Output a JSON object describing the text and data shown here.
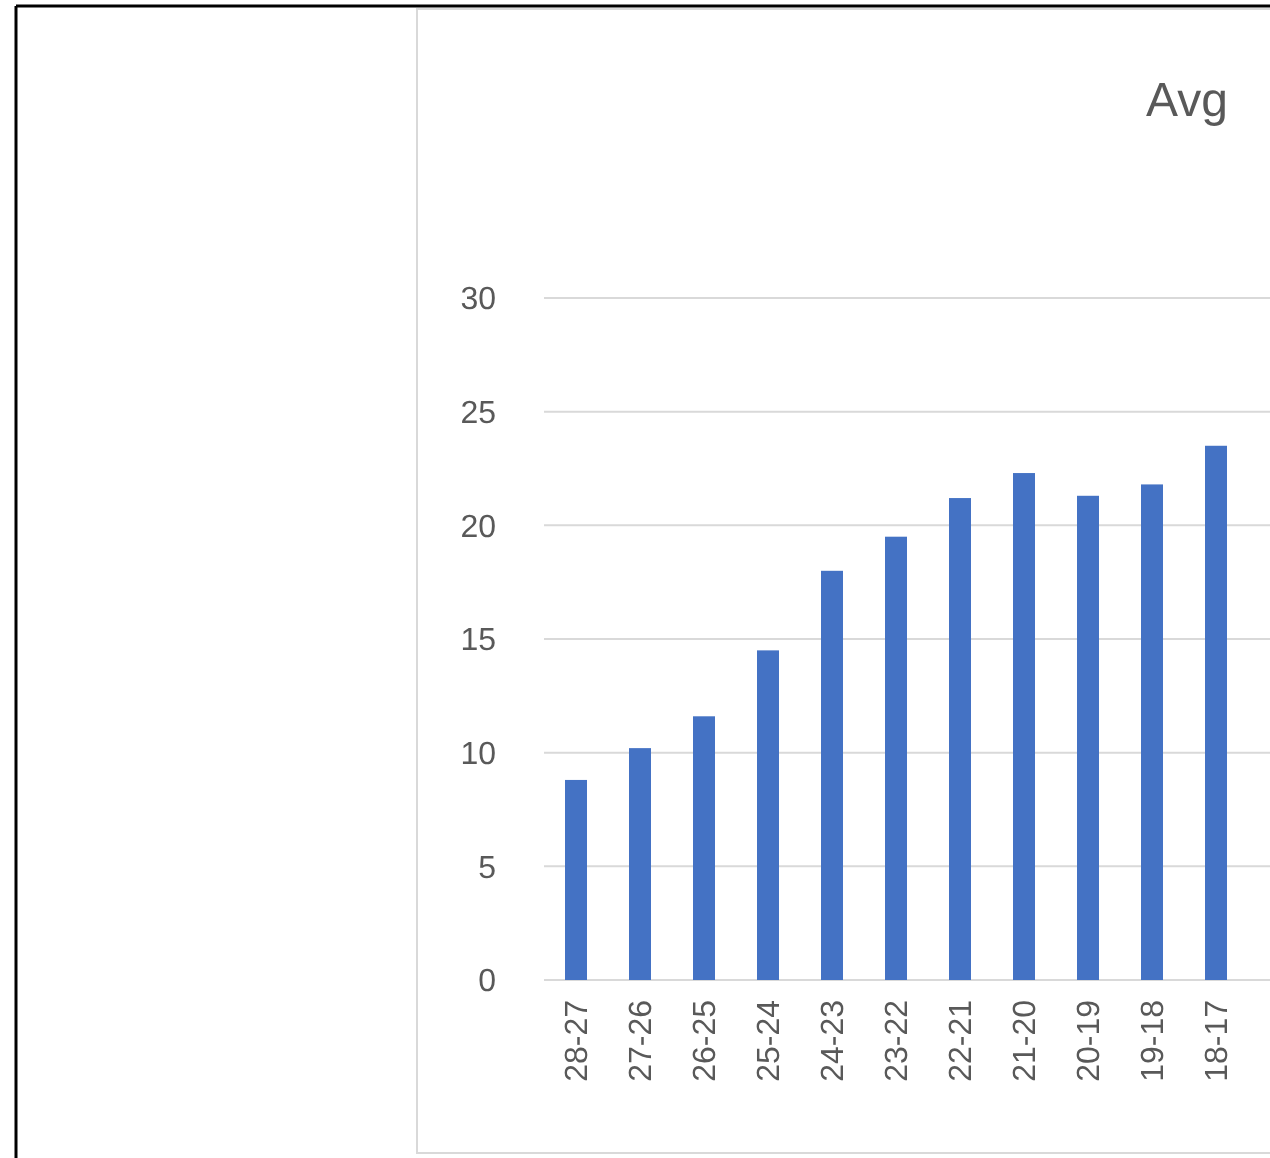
{
  "chart_data": {
    "type": "bar",
    "title": "Avg",
    "categories": [
      "28-27",
      "27-26",
      "26-25",
      "25-24",
      "24-23",
      "23-22",
      "22-21",
      "21-20",
      "20-19",
      "19-18",
      "18-17"
    ],
    "values": [
      8.8,
      10.2,
      11.6,
      14.5,
      18.0,
      19.5,
      21.2,
      22.3,
      21.3,
      21.8,
      23.5
    ],
    "color": "#4472c4",
    "ylim": [
      0,
      30
    ],
    "yticks": [
      0,
      5,
      10,
      15,
      20,
      25,
      30
    ],
    "grid": "y"
  }
}
